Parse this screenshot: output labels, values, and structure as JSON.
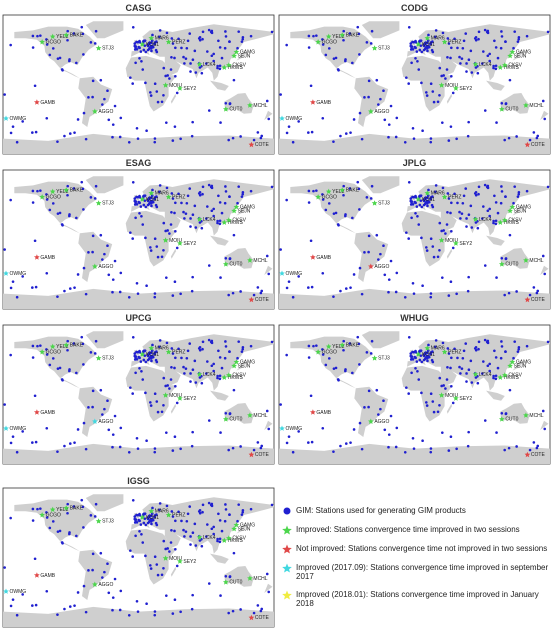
{
  "legend": [
    {
      "label": "GIM: Stations used for generating GIM products",
      "color": "#2020d0",
      "marker": "circle"
    },
    {
      "label": "Improved: Stations convergence time improved in two sessions",
      "color": "#4cd64c",
      "marker": "star"
    },
    {
      "label": "Not improved: Stations convergence time not improved in two sessions",
      "color": "#e04848",
      "marker": "star"
    },
    {
      "label": "Improved (2017.09): Stations convergence time improved in september 2017",
      "color": "#40d8e0",
      "marker": "star"
    },
    {
      "label": "Improved (2018.01): Stations convergence time improved in January 2018",
      "color": "#f0ec40",
      "marker": "star"
    }
  ],
  "panels": [
    {
      "title": "CASG",
      "stations": [
        {
          "name": "GCGO",
          "legend": 1
        },
        {
          "name": "YEL2",
          "legend": 1
        },
        {
          "name": "BAKE",
          "legend": 1
        },
        {
          "name": "STJ3",
          "legend": 1
        },
        {
          "name": "MAR6",
          "legend": 1
        },
        {
          "name": "KOS1",
          "legend": 1
        },
        {
          "name": "PERZ",
          "legend": 1
        },
        {
          "name": "LCK4",
          "legend": 1
        },
        {
          "name": "HKWS",
          "legend": 1
        },
        {
          "name": "SEJN",
          "legend": 1
        },
        {
          "name": "GAMG",
          "legend": 1
        },
        {
          "name": "CKSV",
          "legend": 1
        },
        {
          "name": "MOIU",
          "legend": 1
        },
        {
          "name": "SEY2",
          "legend": 1
        },
        {
          "name": "CUT0",
          "legend": 1
        },
        {
          "name": "MCHL",
          "legend": 1
        },
        {
          "name": "GAMB",
          "legend": 2
        },
        {
          "name": "OWMG",
          "legend": 3
        },
        {
          "name": "AGGO",
          "legend": 1
        },
        {
          "name": "COTE",
          "legend": 2
        }
      ]
    },
    {
      "title": "CODG",
      "stations": [
        {
          "name": "GCGO",
          "legend": 1
        },
        {
          "name": "YEL2",
          "legend": 1
        },
        {
          "name": "BAKE",
          "legend": 1
        },
        {
          "name": "STJ3",
          "legend": 1
        },
        {
          "name": "MAR6",
          "legend": 1
        },
        {
          "name": "KOS1",
          "legend": 1
        },
        {
          "name": "PERZ",
          "legend": 1
        },
        {
          "name": "LCK4",
          "legend": 1
        },
        {
          "name": "HKWS",
          "legend": 1
        },
        {
          "name": "SEJN",
          "legend": 1
        },
        {
          "name": "GAMG",
          "legend": 1
        },
        {
          "name": "CKSV",
          "legend": 1
        },
        {
          "name": "MOIU",
          "legend": 1
        },
        {
          "name": "SEY2",
          "legend": 1
        },
        {
          "name": "CUT0",
          "legend": 1
        },
        {
          "name": "MCHL",
          "legend": 1
        },
        {
          "name": "GAMB",
          "legend": 2
        },
        {
          "name": "OWMG",
          "legend": 3
        },
        {
          "name": "AGGO",
          "legend": 1
        },
        {
          "name": "COTE",
          "legend": 2
        }
      ]
    },
    {
      "title": "ESAG",
      "stations": [
        {
          "name": "GCGO",
          "legend": 1
        },
        {
          "name": "YEL2",
          "legend": 1
        },
        {
          "name": "BAKE",
          "legend": 1
        },
        {
          "name": "STJ3",
          "legend": 1
        },
        {
          "name": "MAR6",
          "legend": 1
        },
        {
          "name": "KOS1",
          "legend": 1
        },
        {
          "name": "PERZ",
          "legend": 1
        },
        {
          "name": "LCK4",
          "legend": 1
        },
        {
          "name": "HKWS",
          "legend": 1
        },
        {
          "name": "SEJN",
          "legend": 1
        },
        {
          "name": "GAMG",
          "legend": 1
        },
        {
          "name": "CKSV",
          "legend": 1
        },
        {
          "name": "MOIU",
          "legend": 1
        },
        {
          "name": "SEY2",
          "legend": 1
        },
        {
          "name": "CUT0",
          "legend": 1
        },
        {
          "name": "MCHL",
          "legend": 1
        },
        {
          "name": "GAMB",
          "legend": 2
        },
        {
          "name": "OWMG",
          "legend": 3
        },
        {
          "name": "AGGO",
          "legend": 1
        },
        {
          "name": "COTE",
          "legend": 2
        }
      ]
    },
    {
      "title": "JPLG",
      "stations": [
        {
          "name": "GCGO",
          "legend": 1
        },
        {
          "name": "YEL2",
          "legend": 1
        },
        {
          "name": "BAKE",
          "legend": 1
        },
        {
          "name": "STJ3",
          "legend": 1
        },
        {
          "name": "MAR6",
          "legend": 1
        },
        {
          "name": "KOS1",
          "legend": 1
        },
        {
          "name": "PERZ",
          "legend": 1
        },
        {
          "name": "LCK4",
          "legend": 1
        },
        {
          "name": "HKWS",
          "legend": 1
        },
        {
          "name": "SEJN",
          "legend": 1
        },
        {
          "name": "GAMG",
          "legend": 1
        },
        {
          "name": "CKSV",
          "legend": 1
        },
        {
          "name": "MOIU",
          "legend": 1
        },
        {
          "name": "SEY2",
          "legend": 1
        },
        {
          "name": "CUT0",
          "legend": 1
        },
        {
          "name": "MCHL",
          "legend": 1
        },
        {
          "name": "GAMB",
          "legend": 2
        },
        {
          "name": "OWMG",
          "legend": 3
        },
        {
          "name": "AGGO",
          "legend": 2
        },
        {
          "name": "COTE",
          "legend": 2
        }
      ]
    },
    {
      "title": "UPCG",
      "stations": [
        {
          "name": "GCGO",
          "legend": 1
        },
        {
          "name": "YEL2",
          "legend": 1
        },
        {
          "name": "BAKE",
          "legend": 1
        },
        {
          "name": "STJ3",
          "legend": 1
        },
        {
          "name": "MAR6",
          "legend": 1
        },
        {
          "name": "KOS1",
          "legend": 1
        },
        {
          "name": "PERZ",
          "legend": 1
        },
        {
          "name": "LCK4",
          "legend": 1
        },
        {
          "name": "HKWS",
          "legend": 1
        },
        {
          "name": "SEJN",
          "legend": 1
        },
        {
          "name": "GAMG",
          "legend": 1
        },
        {
          "name": "CKSV",
          "legend": 1
        },
        {
          "name": "MOIU",
          "legend": 1
        },
        {
          "name": "SEY2",
          "legend": 1
        },
        {
          "name": "CUT0",
          "legend": 1
        },
        {
          "name": "MCHL",
          "legend": 1
        },
        {
          "name": "GAMB",
          "legend": 2
        },
        {
          "name": "OWMG",
          "legend": 3
        },
        {
          "name": "AGGO",
          "legend": 3
        },
        {
          "name": "COTE",
          "legend": 2
        }
      ]
    },
    {
      "title": "WHUG",
      "stations": [
        {
          "name": "GCGO",
          "legend": 1
        },
        {
          "name": "YEL2",
          "legend": 1
        },
        {
          "name": "BAKE",
          "legend": 1
        },
        {
          "name": "STJ3",
          "legend": 1
        },
        {
          "name": "MAR6",
          "legend": 1
        },
        {
          "name": "KOS1",
          "legend": 1
        },
        {
          "name": "PERZ",
          "legend": 1
        },
        {
          "name": "LCK4",
          "legend": 1
        },
        {
          "name": "HKWS",
          "legend": 1
        },
        {
          "name": "SEJN",
          "legend": 1
        },
        {
          "name": "GAMG",
          "legend": 1
        },
        {
          "name": "CKSV",
          "legend": 1
        },
        {
          "name": "MOIU",
          "legend": 1
        },
        {
          "name": "SEY2",
          "legend": 1
        },
        {
          "name": "CUT0",
          "legend": 1
        },
        {
          "name": "MCHL",
          "legend": 1
        },
        {
          "name": "GAMB",
          "legend": 2
        },
        {
          "name": "OWMG",
          "legend": 3
        },
        {
          "name": "AGGO",
          "legend": 1
        },
        {
          "name": "COTE",
          "legend": 2
        }
      ]
    },
    {
      "title": "IGSG",
      "stations": [
        {
          "name": "GCGO",
          "legend": 1
        },
        {
          "name": "YEL2",
          "legend": 1
        },
        {
          "name": "BAKE",
          "legend": 1
        },
        {
          "name": "STJ3",
          "legend": 1
        },
        {
          "name": "MAR6",
          "legend": 1
        },
        {
          "name": "KOS1",
          "legend": 1
        },
        {
          "name": "PERZ",
          "legend": 1
        },
        {
          "name": "LCK4",
          "legend": 1
        },
        {
          "name": "HKWS",
          "legend": 1
        },
        {
          "name": "SEJN",
          "legend": 1
        },
        {
          "name": "GAMG",
          "legend": 1
        },
        {
          "name": "CKSV",
          "legend": 1
        },
        {
          "name": "MOIU",
          "legend": 1
        },
        {
          "name": "SEY2",
          "legend": 1
        },
        {
          "name": "CUT0",
          "legend": 1
        },
        {
          "name": "MCHL",
          "legend": 1
        },
        {
          "name": "GAMB",
          "legend": 2
        },
        {
          "name": "OWMG",
          "legend": 3
        },
        {
          "name": "AGGO",
          "legend": 1
        },
        {
          "name": "COTE",
          "legend": 2
        }
      ]
    }
  ]
}
